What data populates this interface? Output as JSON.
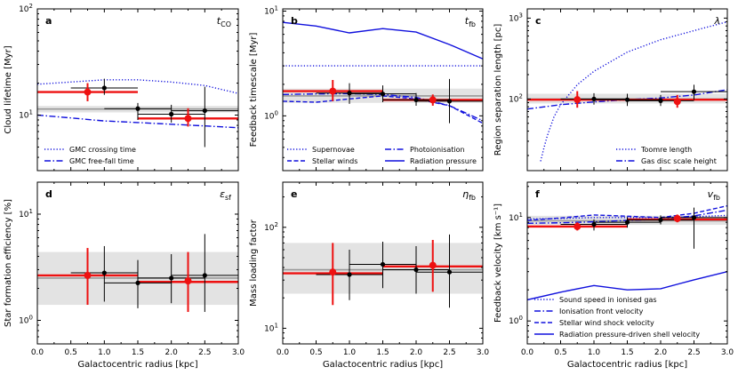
{
  "figure": {
    "x_label": "Galactocentric radius [kpc]",
    "x_ticks": [
      "0.0",
      "0.5",
      "1.0",
      "1.5",
      "2.0",
      "2.5",
      "3.0"
    ]
  },
  "chart_data": [
    {
      "id": "a",
      "type": "line",
      "panel_label": "a",
      "quantity_symbol": "t",
      "quantity_sub": "CO",
      "ylabel": "Cloud lifetime [Myr]",
      "yscale": "log",
      "ylim": [
        3,
        100
      ],
      "xlim": [
        0,
        3
      ],
      "yticks": [
        {
          "v": 10,
          "base": "10",
          "exp": "1"
        },
        {
          "v": 100,
          "base": "10",
          "exp": "2"
        }
      ],
      "band": {
        "low": 10.6,
        "high": 12.2,
        "center": 11.4
      },
      "red_line": {
        "value": 9.3,
        "x_from": 1.5,
        "x_to": 3.0
      },
      "red_line_inner": {
        "value": 16.5,
        "x_from": 0.0,
        "x_to": 1.5
      },
      "red_points": [
        {
          "x": 0.75,
          "y": 16.5,
          "xerr": [
            0.0,
            1.5
          ],
          "yerr": [
            13.5,
            20.0
          ]
        },
        {
          "x": 2.25,
          "y": 9.3,
          "xerr": [
            1.5,
            3.0
          ],
          "yerr": [
            7.8,
            11.6
          ]
        }
      ],
      "black_points": [
        {
          "x": 1.0,
          "y": 18.0,
          "xerr": [
            0.5,
            1.5
          ],
          "yerr": [
            15.5,
            22.0
          ]
        },
        {
          "x": 1.5,
          "y": 11.5,
          "xerr": [
            1.0,
            2.0
          ],
          "yerr": [
            9.0,
            13.0
          ]
        },
        {
          "x": 2.0,
          "y": 10.2,
          "xerr": [
            1.5,
            2.5
          ],
          "yerr": [
            8.5,
            12.5
          ]
        },
        {
          "x": 2.5,
          "y": 11.0,
          "xerr": [
            2.0,
            3.0
          ],
          "yerr": [
            5.0,
            18.5
          ]
        }
      ],
      "series": [
        {
          "name": "GMC crossing time",
          "style": "dotted",
          "x": [
            0,
            0.5,
            1.0,
            1.5,
            2.0,
            2.5,
            3.0
          ],
          "y": [
            19.5,
            20.5,
            21.5,
            21.5,
            20.5,
            19.0,
            16.0
          ]
        },
        {
          "name": "GMC free-fall time",
          "style": "dashdot",
          "x": [
            0,
            0.5,
            1.0,
            1.5,
            2.0,
            2.5,
            3.0
          ],
          "y": [
            10.0,
            9.4,
            8.8,
            8.5,
            8.2,
            7.9,
            7.6
          ]
        }
      ],
      "legend_loc": "lower-left"
    },
    {
      "id": "b",
      "type": "line",
      "panel_label": "b",
      "quantity_symbol": "t",
      "quantity_sub": "fb",
      "ylabel": "Feedback timescale [Myr]",
      "yscale": "log",
      "ylim": [
        0.3,
        10.5
      ],
      "xlim": [
        0,
        3
      ],
      "yticks": [
        {
          "v": 1,
          "base": "10",
          "exp": "0"
        },
        {
          "v": 10,
          "base": "10",
          "exp": "1"
        }
      ],
      "band": {
        "low": 1.33,
        "high": 1.82,
        "center": 1.55
      },
      "red_line": {
        "value": 1.42,
        "x_from": 1.5,
        "x_to": 3.0
      },
      "red_line_inner": {
        "value": 1.72,
        "x_from": 0.0,
        "x_to": 1.5
      },
      "red_points": [
        {
          "x": 0.75,
          "y": 1.72,
          "xerr": [
            0.0,
            1.5
          ],
          "yerr": [
            1.38,
            2.2
          ]
        },
        {
          "x": 2.25,
          "y": 1.42,
          "xerr": [
            1.5,
            3.0
          ],
          "yerr": [
            1.25,
            1.6
          ]
        }
      ],
      "black_points": [
        {
          "x": 1.0,
          "y": 1.65,
          "xerr": [
            0.5,
            1.5
          ],
          "yerr": [
            1.3,
            2.05
          ]
        },
        {
          "x": 1.5,
          "y": 1.62,
          "xerr": [
            1.0,
            2.0
          ],
          "yerr": [
            1.35,
            1.95
          ]
        },
        {
          "x": 2.0,
          "y": 1.42,
          "xerr": [
            1.5,
            2.5
          ],
          "yerr": [
            1.25,
            1.65
          ]
        },
        {
          "x": 2.5,
          "y": 1.38,
          "xerr": [
            2.0,
            3.0
          ],
          "yerr": [
            0.85,
            2.25
          ]
        }
      ],
      "series": [
        {
          "name": "Supernovae",
          "style": "dotted",
          "x": [
            0,
            3.0
          ],
          "y": [
            3.0,
            3.0
          ]
        },
        {
          "name": "Photoionisation",
          "style": "dashdot",
          "x": [
            0,
            0.5,
            1.0,
            1.5,
            2.0,
            2.5,
            3.0
          ],
          "y": [
            1.6,
            1.62,
            1.63,
            1.6,
            1.5,
            1.25,
            0.9
          ]
        },
        {
          "name": "Stellar winds",
          "style": "dashed",
          "x": [
            0,
            0.5,
            1.0,
            1.5,
            2.0,
            2.5,
            3.0
          ],
          "y": [
            1.38,
            1.35,
            1.45,
            1.55,
            1.45,
            1.25,
            0.85
          ]
        },
        {
          "name": "Radiation pressure",
          "style": "solid",
          "x": [
            0,
            0.5,
            1.0,
            1.5,
            2.0,
            2.5,
            3.0
          ],
          "y": [
            7.8,
            7.2,
            6.2,
            6.8,
            6.3,
            4.8,
            3.5
          ]
        }
      ],
      "legend_loc": "lower"
    },
    {
      "id": "c",
      "type": "line",
      "panel_label": "c",
      "quantity_symbol": "λ",
      "quantity_sub": "",
      "ylabel": "Region separation length [pc]",
      "yscale": "log",
      "ylim": [
        13,
        1300
      ],
      "xlim": [
        0,
        3
      ],
      "yticks": [
        {
          "v": 100,
          "base": "10",
          "exp": "2"
        },
        {
          "v": 1000,
          "base": "10",
          "exp": "3"
        }
      ],
      "band": {
        "low": 88,
        "high": 116,
        "center": 100
      },
      "red_line": {
        "value": 98,
        "x_from": 0.0,
        "x_to": 3.0
      },
      "red_line_inner": null,
      "red_points": [
        {
          "x": 0.75,
          "y": 98,
          "xerr": [
            0.0,
            1.5
          ],
          "yerr": [
            78,
            125
          ]
        },
        {
          "x": 2.25,
          "y": 93,
          "xerr": [
            1.5,
            3.0
          ],
          "yerr": [
            78,
            112
          ]
        }
      ],
      "black_points": [
        {
          "x": 1.0,
          "y": 100,
          "xerr": [
            0.5,
            1.5
          ],
          "yerr": [
            85,
            118
          ]
        },
        {
          "x": 1.5,
          "y": 98,
          "xerr": [
            1.0,
            2.0
          ],
          "yerr": [
            82,
            116
          ]
        },
        {
          "x": 2.0,
          "y": 95,
          "xerr": [
            1.5,
            2.5
          ],
          "yerr": [
            82,
            112
          ]
        },
        {
          "x": 2.5,
          "y": 123,
          "xerr": [
            2.0,
            3.0
          ],
          "yerr": [
            98,
            150
          ]
        }
      ],
      "series": [
        {
          "name": "Toomre length",
          "style": "dotted",
          "x": [
            0.2,
            0.25,
            0.3,
            0.4,
            0.5,
            0.75,
            1.0,
            1.5,
            2.0,
            2.5,
            3.0
          ],
          "y": [
            17,
            25,
            35,
            60,
            85,
            150,
            220,
            380,
            540,
            700,
            900
          ]
        },
        {
          "name": "Gas disc scale height",
          "style": "dashdot",
          "x": [
            0,
            0.5,
            1.0,
            1.5,
            2.0,
            2.5,
            3.0
          ],
          "y": [
            75,
            85,
            92,
            98,
            103,
            112,
            130
          ]
        }
      ],
      "legend_loc": "lower-right"
    },
    {
      "id": "d",
      "type": "line",
      "panel_label": "d",
      "quantity_symbol": "ε",
      "quantity_sub": "sf",
      "ylabel": "Star formation efficiency [%]",
      "yscale": "log",
      "ylim": [
        0.6,
        20
      ],
      "xlim": [
        0,
        3
      ],
      "yticks": [
        {
          "v": 1,
          "base": "10",
          "exp": "0"
        },
        {
          "v": 10,
          "base": "10",
          "exp": "1"
        }
      ],
      "band": {
        "low": 1.4,
        "high": 4.4,
        "center": 2.5
      },
      "red_line": {
        "value": 2.3,
        "x_from": 1.5,
        "x_to": 3.0
      },
      "red_line_inner": {
        "value": 2.65,
        "x_from": 0.0,
        "x_to": 1.5
      },
      "red_points": [
        {
          "x": 0.75,
          "y": 2.65,
          "xerr": [
            0.0,
            1.5
          ],
          "yerr": [
            1.4,
            4.8
          ]
        },
        {
          "x": 2.25,
          "y": 2.35,
          "xerr": [
            1.5,
            3.0
          ],
          "yerr": [
            1.2,
            4.4
          ]
        }
      ],
      "black_points": [
        {
          "x": 1.0,
          "y": 2.8,
          "xerr": [
            0.5,
            1.5
          ],
          "yerr": [
            1.5,
            5.0
          ]
        },
        {
          "x": 1.5,
          "y": 2.25,
          "xerr": [
            1.0,
            2.0
          ],
          "yerr": [
            1.3,
            3.7
          ]
        },
        {
          "x": 2.0,
          "y": 2.5,
          "xerr": [
            1.5,
            2.5
          ],
          "yerr": [
            1.45,
            4.2
          ]
        },
        {
          "x": 2.5,
          "y": 2.65,
          "xerr": [
            2.0,
            3.0
          ],
          "yerr": [
            1.2,
            6.5
          ]
        }
      ],
      "series": [],
      "legend_loc": "none"
    },
    {
      "id": "e",
      "type": "line",
      "panel_label": "e",
      "quantity_symbol": "η",
      "quantity_sub": "fb",
      "ylabel": "Mass loading factor",
      "yscale": "log",
      "ylim": [
        7,
        280
      ],
      "xlim": [
        0,
        3
      ],
      "yticks": [
        {
          "v": 10,
          "base": "10",
          "exp": "1"
        },
        {
          "v": 100,
          "base": "10",
          "exp": "2"
        }
      ],
      "band": {
        "low": 22,
        "high": 70,
        "center": 38
      },
      "red_line": {
        "value": 41,
        "x_from": 1.5,
        "x_to": 3.0
      },
      "red_line_inner": {
        "value": 35,
        "x_from": 0.0,
        "x_to": 1.5
      },
      "red_points": [
        {
          "x": 0.75,
          "y": 36,
          "xerr": [
            0.0,
            1.5
          ],
          "yerr": [
            17,
            70
          ]
        },
        {
          "x": 2.25,
          "y": 42,
          "xerr": [
            1.5,
            3.0
          ],
          "yerr": [
            23,
            75
          ]
        }
      ],
      "black_points": [
        {
          "x": 1.0,
          "y": 34,
          "xerr": [
            0.5,
            1.5
          ],
          "yerr": [
            19,
            60
          ]
        },
        {
          "x": 1.5,
          "y": 43,
          "xerr": [
            1.0,
            2.0
          ],
          "yerr": [
            25,
            72
          ]
        },
        {
          "x": 2.0,
          "y": 38,
          "xerr": [
            1.5,
            2.5
          ],
          "yerr": [
            22,
            65
          ]
        },
        {
          "x": 2.5,
          "y": 36,
          "xerr": [
            2.0,
            3.0
          ],
          "yerr": [
            16,
            85
          ]
        }
      ],
      "series": [],
      "legend_loc": "none"
    },
    {
      "id": "f",
      "type": "line",
      "panel_label": "f",
      "quantity_symbol": "v",
      "quantity_sub": "fb",
      "ylabel": "Feedback velocity [km s⁻¹]",
      "yscale": "log",
      "ylim": [
        0.6,
        22
      ],
      "xlim": [
        0,
        3
      ],
      "yticks": [
        {
          "v": 1,
          "base": "10",
          "exp": "0"
        },
        {
          "v": 10,
          "base": "10",
          "exp": "1"
        }
      ],
      "band": {
        "low": 8.5,
        "high": 10.4,
        "center": 9.3
      },
      "red_line": {
        "value": 9.6,
        "x_from": 1.5,
        "x_to": 3.0
      },
      "red_line_inner": {
        "value": 8.2,
        "x_from": 0.0,
        "x_to": 1.5
      },
      "red_points": [
        {
          "x": 0.75,
          "y": 8.2,
          "xerr": [
            0.0,
            1.5
          ],
          "yerr": [
            7.5,
            9.0
          ]
        },
        {
          "x": 2.25,
          "y": 9.8,
          "xerr": [
            1.5,
            3.0
          ],
          "yerr": [
            9.0,
            10.7
          ]
        }
      ],
      "black_points": [
        {
          "x": 1.0,
          "y": 8.6,
          "xerr": [
            0.5,
            1.5
          ],
          "yerr": [
            7.5,
            9.6
          ]
        },
        {
          "x": 1.5,
          "y": 9.0,
          "xerr": [
            1.0,
            2.0
          ],
          "yerr": [
            8.0,
            10.1
          ]
        },
        {
          "x": 2.0,
          "y": 9.5,
          "xerr": [
            1.5,
            2.5
          ],
          "yerr": [
            8.6,
            10.5
          ]
        },
        {
          "x": 2.5,
          "y": 10.0,
          "xerr": [
            2.0,
            3.0
          ],
          "yerr": [
            5.0,
            12.5
          ]
        }
      ],
      "series": [
        {
          "name": "Sound speed in ionised gas",
          "style": "dotted",
          "x": [
            0,
            0.5,
            1.0,
            1.5,
            2.0,
            2.5,
            3.0
          ],
          "y": [
            9.7,
            9.8,
            10.0,
            10.0,
            10.0,
            10.2,
            10.5
          ]
        },
        {
          "name": "Ionisation front velocity",
          "style": "dashdot",
          "x": [
            0,
            0.5,
            1.0,
            1.5,
            2.0,
            2.5,
            3.0
          ],
          "y": [
            8.8,
            8.9,
            9.1,
            9.4,
            9.6,
            10.4,
            11.8
          ]
        },
        {
          "name": "Stellar wind shock velocity",
          "style": "dashed",
          "x": [
            0,
            0.5,
            1.0,
            1.5,
            2.0,
            2.5,
            3.0
          ],
          "y": [
            9.4,
            9.9,
            10.6,
            10.3,
            10.0,
            11.0,
            13.0
          ]
        },
        {
          "name": "Radiation pressure-driven shell velocity",
          "style": "solid",
          "x": [
            0,
            0.5,
            1.0,
            1.5,
            2.0,
            2.5,
            3.0
          ],
          "y": [
            1.6,
            1.9,
            2.2,
            2.0,
            2.05,
            2.5,
            3.0
          ]
        }
      ],
      "legend_loc": "lower-left"
    }
  ]
}
